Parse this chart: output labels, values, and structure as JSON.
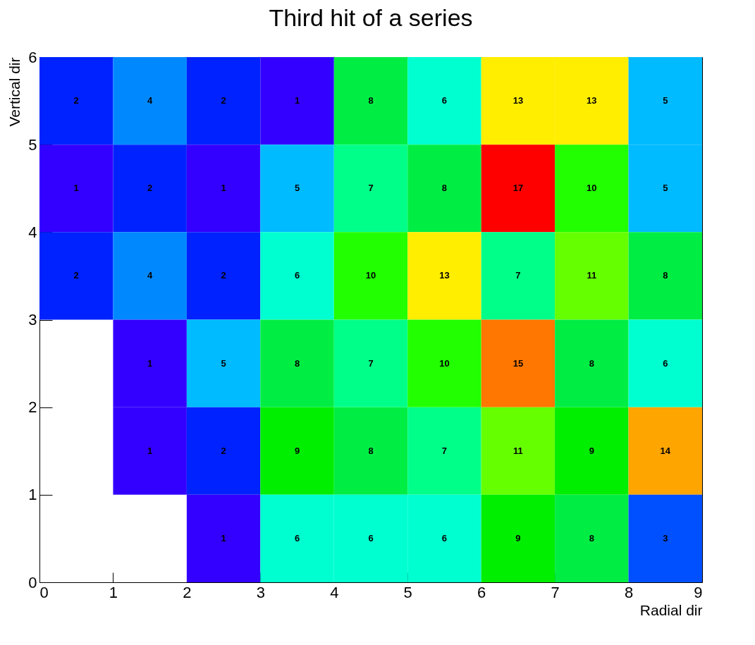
{
  "chart_data": {
    "type": "heatmap",
    "title": "Third hit of a series",
    "xlabel": "Radial dir",
    "ylabel": "Vertical dir",
    "x": [
      0.5,
      1.5,
      2.5,
      3.5,
      4.5,
      5.5,
      6.5,
      7.5,
      8.5
    ],
    "y": [
      5.5,
      4.5,
      3.5,
      2.5,
      1.5,
      0.5
    ],
    "xlim": [
      0,
      9
    ],
    "xticks": [
      0,
      1,
      2,
      3,
      4,
      5,
      6,
      7,
      8,
      9
    ],
    "ylim": [
      0,
      6
    ],
    "yticks": [
      0,
      1,
      2,
      3,
      4,
      5,
      6
    ],
    "cells": [
      [
        2,
        4,
        2,
        1,
        8,
        6,
        13,
        13,
        5
      ],
      [
        1,
        2,
        1,
        5,
        7,
        8,
        17,
        10,
        5
      ],
      [
        2,
        4,
        2,
        6,
        10,
        13,
        7,
        11,
        8
      ],
      [
        null,
        1,
        5,
        8,
        7,
        10,
        15,
        8,
        6
      ],
      [
        null,
        1,
        2,
        9,
        8,
        7,
        11,
        9,
        14
      ],
      [
        null,
        null,
        1,
        6,
        6,
        6,
        9,
        8,
        3
      ]
    ],
    "data_labels": true,
    "grid": false
  }
}
